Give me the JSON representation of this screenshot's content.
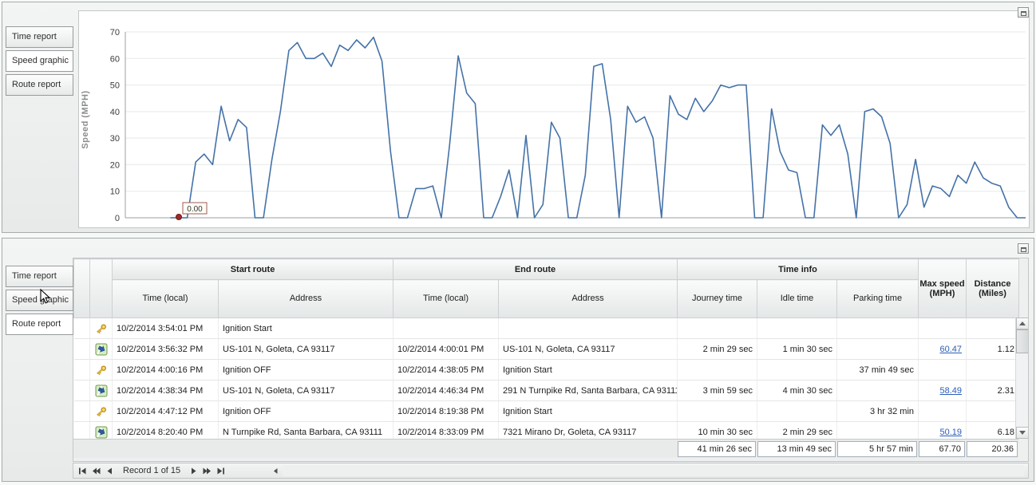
{
  "colors": {
    "chart_line": "#4472a8",
    "link": "#2b5db8",
    "marker": "#9e2b25"
  },
  "top_panel": {
    "tabs": [
      {
        "label": "Time report",
        "selected": false
      },
      {
        "label": "Speed graphic",
        "selected": true
      },
      {
        "label": "Route report",
        "selected": false
      }
    ]
  },
  "chart_data": {
    "type": "line",
    "title": "",
    "xlabel": "",
    "ylabel": "Speed (MPH)",
    "ylim": [
      0,
      70
    ],
    "yticks": [
      0,
      10,
      20,
      30,
      40,
      50,
      60,
      70
    ],
    "grid": true,
    "legend": false,
    "line_color": "#4472a8",
    "x_start_frac": 0.05,
    "annotation": {
      "label": "0.00",
      "x_index": 1,
      "value": 0
    },
    "values": [
      0,
      0,
      0,
      21,
      24,
      20,
      42,
      29,
      37,
      34,
      0,
      0,
      22,
      40,
      63,
      66,
      60,
      60,
      62,
      57,
      65,
      63,
      67,
      64,
      68,
      59,
      25,
      0,
      0,
      11,
      11,
      12,
      0,
      28,
      61,
      47,
      43,
      0,
      0,
      8,
      18,
      0,
      31,
      0,
      5,
      36,
      30,
      0,
      0,
      16,
      57,
      58,
      37,
      0,
      42,
      36,
      38,
      30,
      0,
      46,
      39,
      37,
      45,
      40,
      44,
      50,
      49,
      50,
      50,
      0,
      0,
      41,
      25,
      18,
      17,
      0,
      0,
      35,
      31,
      35,
      24,
      0,
      40,
      41,
      38,
      28,
      0,
      5,
      22,
      4,
      12,
      11,
      8,
      16,
      13,
      21,
      15,
      13,
      12,
      4,
      0,
      0
    ]
  },
  "bottom_panel": {
    "tabs": [
      {
        "label": "Time report",
        "selected": false
      },
      {
        "label": "Speed graphic",
        "selected": false
      },
      {
        "label": "Route report",
        "selected": true
      }
    ],
    "table": {
      "groups": [
        {
          "label": "Start route"
        },
        {
          "label": "End route"
        },
        {
          "label": "Time info"
        }
      ],
      "columns": [
        "Time (local)",
        "Address",
        "Time (local)",
        "Address",
        "Journey time",
        "Idle time",
        "Parking time",
        "Max speed\n(MPH)",
        "Distance\n(Miles)"
      ],
      "rows": [
        {
          "icon": "key",
          "start_time": "10/2/2014 3:54:01 PM",
          "start_address": "Ignition Start",
          "end_time": "",
          "end_address": "",
          "journey_time": "",
          "idle_time": "",
          "parking_time": "",
          "max_speed": "",
          "distance": ""
        },
        {
          "icon": "route",
          "start_time": "10/2/2014 3:56:32 PM",
          "start_address": "US-101 N, Goleta, CA 93117",
          "end_time": "10/2/2014 4:00:01 PM",
          "end_address": "US-101 N, Goleta, CA 93117",
          "journey_time": "2 min 29 sec",
          "idle_time": "1 min 30 sec",
          "parking_time": "",
          "max_speed": "60.47",
          "distance": "1.12"
        },
        {
          "icon": "key",
          "start_time": "10/2/2014 4:00:16 PM",
          "start_address": "Ignition OFF",
          "end_time": "10/2/2014 4:38:05 PM",
          "end_address": "Ignition Start",
          "journey_time": "",
          "idle_time": "",
          "parking_time": "37 min 49 sec",
          "max_speed": "",
          "distance": ""
        },
        {
          "icon": "route",
          "start_time": "10/2/2014 4:38:34 PM",
          "start_address": "US-101 N, Goleta, CA 93117",
          "end_time": "10/2/2014 4:46:34 PM",
          "end_address": "291 N Turnpike Rd, Santa Barbara, CA 93111",
          "journey_time": "3 min 59 sec",
          "idle_time": "4 min 30 sec",
          "parking_time": "",
          "max_speed": "58.49",
          "distance": "2.31"
        },
        {
          "icon": "key",
          "start_time": "10/2/2014 4:47:12 PM",
          "start_address": "Ignition OFF",
          "end_time": "10/2/2014 8:19:38 PM",
          "end_address": "Ignition Start",
          "journey_time": "",
          "idle_time": "",
          "parking_time": "3 hr 32 min",
          "max_speed": "",
          "distance": ""
        },
        {
          "icon": "route",
          "start_time": "10/2/2014 8:20:40 PM",
          "start_address": "N Turnpike Rd, Santa Barbara, CA 93111",
          "end_time": "10/2/2014 8:33:09 PM",
          "end_address": "7321 Mirano Dr, Goleta, CA 93117",
          "journey_time": "10 min 30 sec",
          "idle_time": "2 min 29 sec",
          "parking_time": "",
          "max_speed": "50.19",
          "distance": "6.18"
        }
      ],
      "summary": {
        "journey_time": "41 min 26 sec",
        "idle_time": "13 min 49 sec",
        "parking_time": "5 hr 57 min",
        "max_speed": "67.70",
        "distance": "20.36"
      }
    },
    "pager": {
      "record_label": "Record 1 of 15"
    }
  }
}
